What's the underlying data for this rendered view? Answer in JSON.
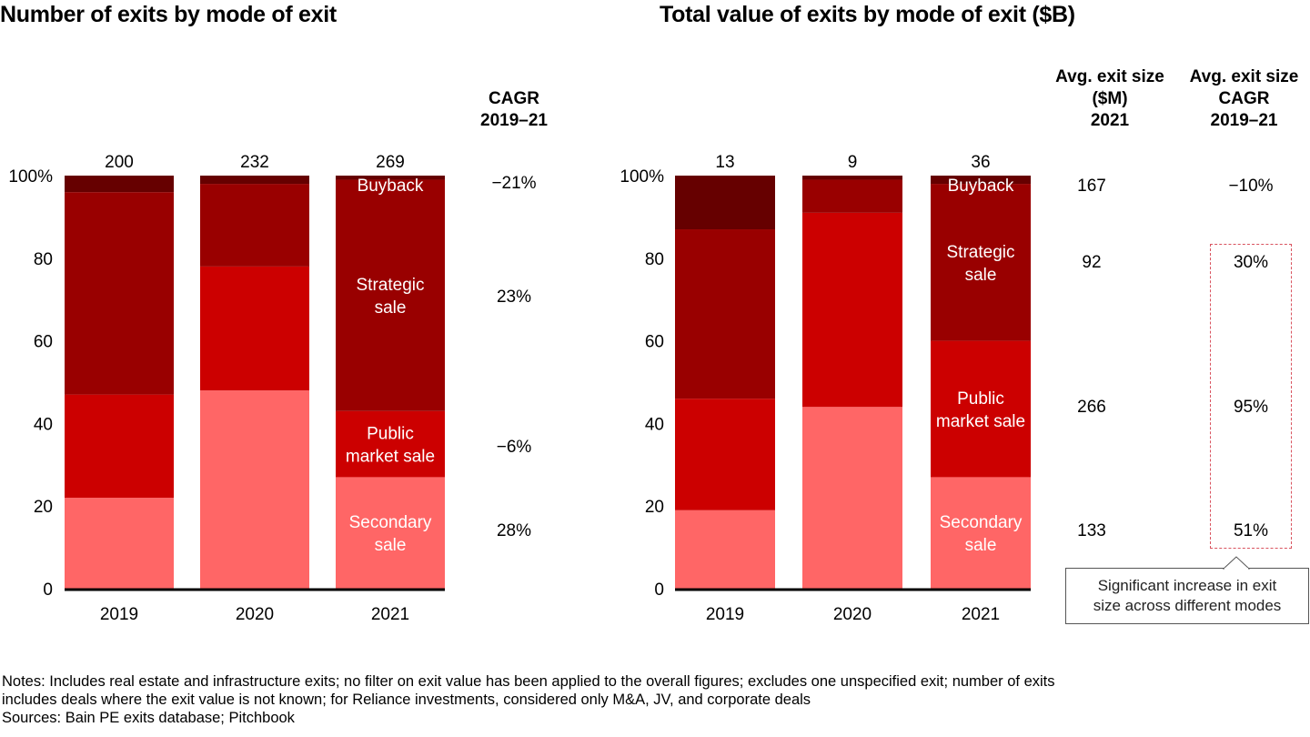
{
  "chart_data": [
    {
      "type": "bar",
      "stacked": true,
      "title": "Number of exits by mode of exit",
      "categories": [
        "2019",
        "2020",
        "2021"
      ],
      "totals": [
        "200",
        "232",
        "269"
      ],
      "yticks": [
        "0",
        "20",
        "40",
        "60",
        "80",
        "100%"
      ],
      "ylim": [
        0,
        100
      ],
      "series": [
        {
          "name": "Secondary sale",
          "color": "#ff6666",
          "values": [
            22,
            48,
            27
          ]
        },
        {
          "name": "Public market sale",
          "color": "#cc0000",
          "values": [
            25,
            30,
            16
          ]
        },
        {
          "name": "Strategic sale",
          "color": "#990000",
          "values": [
            49,
            20,
            56
          ]
        },
        {
          "name": "Buyback",
          "color": "#660000",
          "values": [
            4,
            2,
            1
          ]
        }
      ],
      "segment_labels_on": "2021",
      "segment_labels": [
        "Secondary\nsale",
        "Public\nmarket sale",
        "Strategic\nsale",
        "Buyback"
      ],
      "side_column": {
        "header": [
          "CAGR",
          "2019–21"
        ],
        "values": [
          "28%",
          "−6%",
          "23%",
          "−21%"
        ]
      }
    },
    {
      "type": "bar",
      "stacked": true,
      "title": "Total value of exits by mode of exit ($B)",
      "categories": [
        "2019",
        "2020",
        "2021"
      ],
      "totals": [
        "13",
        "9",
        "36"
      ],
      "yticks": [
        "0",
        "20",
        "40",
        "60",
        "80",
        "100%"
      ],
      "ylim": [
        0,
        100
      ],
      "series": [
        {
          "name": "Secondary sale",
          "color": "#ff6666",
          "values": [
            19,
            44,
            27
          ]
        },
        {
          "name": "Public market sale",
          "color": "#cc0000",
          "values": [
            27,
            47,
            33
          ]
        },
        {
          "name": "Strategic sale",
          "color": "#990000",
          "values": [
            41,
            8,
            38
          ]
        },
        {
          "name": "Buyback",
          "color": "#660000",
          "values": [
            13,
            1,
            2
          ]
        }
      ],
      "segment_labels_on": "2021",
      "segment_labels": [
        "Secondary\nsale",
        "Public\nmarket sale",
        "Strategic\nsale",
        "Buyback"
      ],
      "side_columns": [
        {
          "header": [
            "Avg. exit size",
            "($M)",
            "2021"
          ],
          "values": [
            "133",
            "266",
            "92",
            "167"
          ]
        },
        {
          "header": [
            "Avg. exit size",
            "CAGR",
            "2019–21"
          ],
          "values": [
            "51%",
            "95%",
            "30%",
            "−10%"
          ]
        }
      ]
    }
  ],
  "callout": {
    "line1": "Significant increase in exit",
    "line2": "size across different modes"
  },
  "notes": {
    "line1": "Notes: Includes real estate and infrastructure exits; no filter on exit value has been applied to the overall figures; excludes one unspecified exit; number of exits",
    "line2": "includes deals where the exit value is not known; for Reliance investments, considered only M&A, JV, and corporate deals",
    "sources": "Sources: Bain PE exits database; Pitchbook"
  }
}
